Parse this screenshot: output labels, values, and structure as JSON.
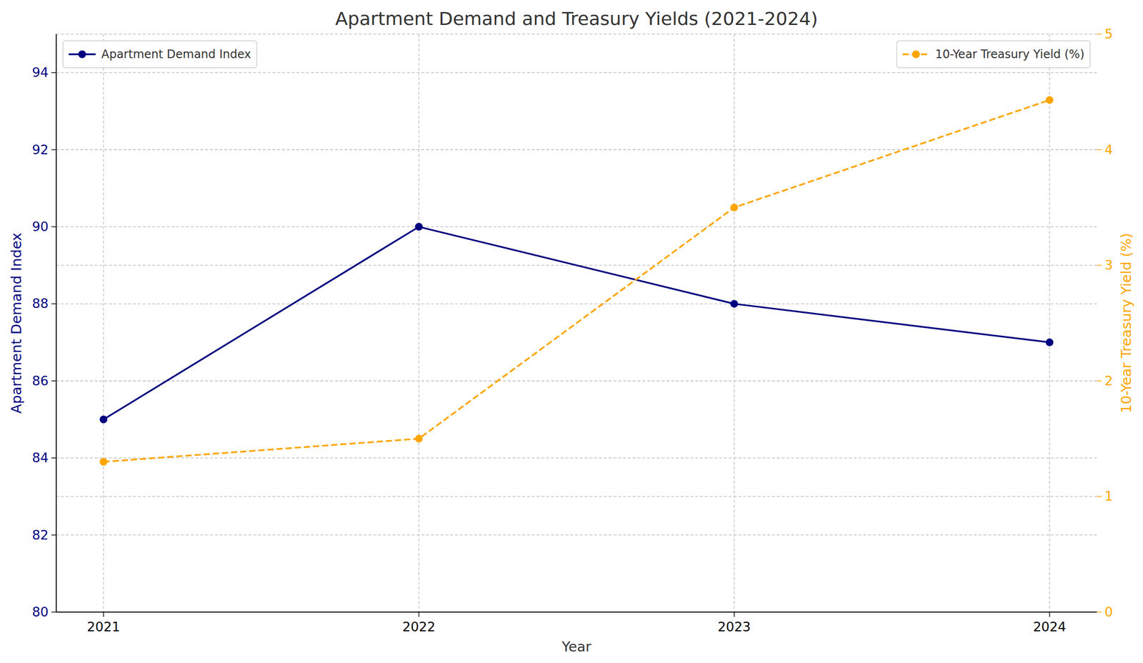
{
  "chart_data": {
    "type": "line",
    "title": "Apartment Demand and Treasury Yields (2021-2024)",
    "x_label": "Year",
    "y_label": "Apartment Demand Index",
    "y2_label": "10-Year Treasury Yield (%)",
    "x": [
      2021,
      2022,
      2023,
      2024
    ],
    "xlim": [
      2020.85,
      2024.15
    ],
    "xticks": [
      2021,
      2022,
      2023,
      2024
    ],
    "ylim": [
      80,
      95
    ],
    "yticks": [
      80,
      82,
      84,
      86,
      88,
      90,
      92,
      94
    ],
    "y2lim": [
      0,
      5
    ],
    "y2ticks": [
      0,
      1,
      2,
      3,
      4,
      5
    ],
    "grid": true,
    "legend": "upper left",
    "series": [
      {
        "name": "Apartment Demand Index",
        "color": "#000080",
        "values": [
          85,
          90,
          88,
          87
        ],
        "marker": "circle",
        "line_style": "solid"
      },
      {
        "name": "10-Year Treasury Yield (%)",
        "color": "#ffa500",
        "values": [
          1.3,
          1.5,
          3.5,
          4.43
        ],
        "axis": "y2",
        "marker": "circle",
        "line_style": "dashed"
      }
    ]
  }
}
